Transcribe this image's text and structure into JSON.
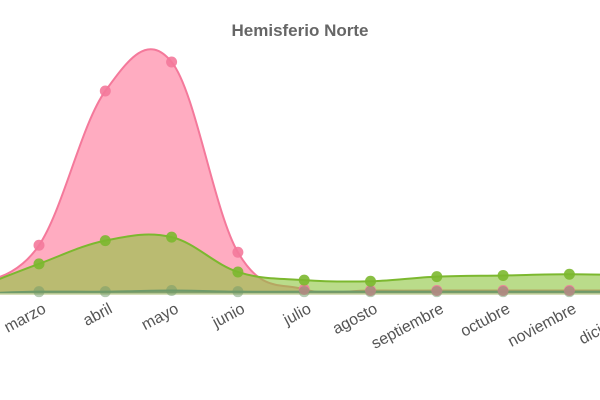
{
  "chart_data": {
    "type": "area",
    "title": "Hemisferio Norte",
    "xlabel": "",
    "ylabel": "",
    "categories": [
      "marzo",
      "abril",
      "mayo",
      "junio",
      "julio",
      "agosto",
      "septiembre",
      "octubre",
      "noviembre",
      "diciembre"
    ],
    "ylim": [
      0,
      110
    ],
    "grid": false,
    "legend": "none",
    "series": [
      {
        "color": "#f4799b",
        "fill": "#ff7fa0",
        "values": [
          21,
          87.5,
          100,
          18,
          2,
          1.5,
          1.5,
          1.5,
          1.5,
          1.5
        ]
      },
      {
        "color": "#7cb82f",
        "fill": "#8cc43c",
        "values": [
          13,
          23,
          24.5,
          9.5,
          6,
          5.5,
          7.5,
          8,
          8.5,
          8
        ]
      },
      {
        "color": "#6f9a6a",
        "fill": "#5f8f6a",
        "values": [
          1,
          1,
          1.5,
          1,
          1,
          1,
          1,
          1,
          1,
          1
        ]
      }
    ]
  }
}
